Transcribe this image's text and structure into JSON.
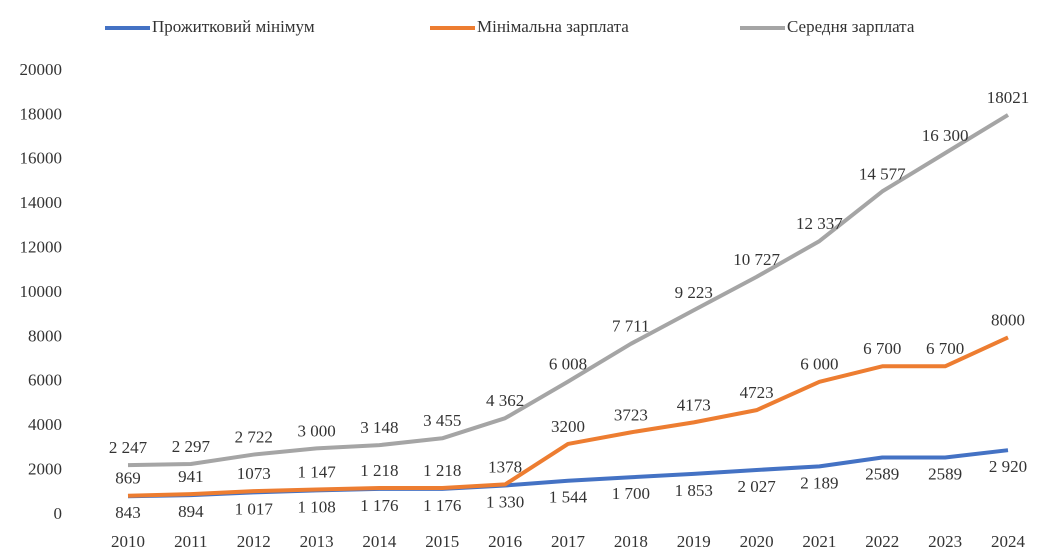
{
  "chart_data": {
    "type": "line",
    "categories": [
      "2010",
      "2011",
      "2012",
      "2013",
      "2014",
      "2015",
      "2016",
      "2017",
      "2018",
      "2019",
      "2020",
      "2021",
      "2022",
      "2023",
      "2024"
    ],
    "series": [
      {
        "name": "Прожитковий мінімум",
        "color": "#4472c4",
        "values": [
          843,
          894,
          1017,
          1108,
          1176,
          1176,
          1330,
          1544,
          1700,
          1853,
          2027,
          2189,
          2589,
          2589,
          2920
        ],
        "value_labels": [
          "843",
          "894",
          "1 017",
          "1 108",
          "1 176",
          "1 176",
          "1 330",
          "1 544",
          "1 700",
          "1 853",
          "2 027",
          "2 189",
          "2589",
          "2589",
          "2 920"
        ]
      },
      {
        "name": "Мінімальна зарплата",
        "color": "#ed7d31",
        "values": [
          869,
          941,
          1073,
          1147,
          1218,
          1218,
          1378,
          3200,
          3723,
          4173,
          4723,
          6000,
          6700,
          6700,
          8000
        ],
        "value_labels": [
          "869",
          "941",
          "1073",
          "1 147",
          "1 218",
          "1 218",
          "1378",
          "3200",
          "3723",
          "4173",
          "4723",
          "6 000",
          "6 700",
          "6 700",
          "8000"
        ]
      },
      {
        "name": "Середня зарплата",
        "color": "#a5a5a5",
        "values": [
          2247,
          2297,
          2722,
          3000,
          3148,
          3455,
          4362,
          6008,
          7711,
          9223,
          10727,
          12337,
          14577,
          16300,
          18021
        ],
        "value_labels": [
          "2 247",
          "2 297",
          "2 722",
          "3 000",
          "3 148",
          "3 455",
          "4 362",
          "6 008",
          "7 711",
          "9 223",
          "10 727",
          "12 337",
          "14 577",
          "16 300",
          "18021"
        ]
      }
    ],
    "ylim": [
      0,
      20000
    ],
    "yticks": [
      0,
      2000,
      4000,
      6000,
      8000,
      10000,
      12000,
      14000,
      16000,
      18000,
      20000
    ],
    "grid": false,
    "legend": "top"
  }
}
